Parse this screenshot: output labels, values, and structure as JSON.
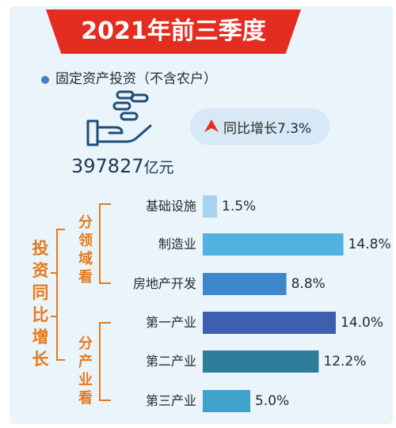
{
  "header": {
    "title": "2021年前三季度"
  },
  "summary": {
    "subtitle": "固定资产投资（不含农户）",
    "total_value": "397827",
    "total_unit": "亿元",
    "growth_text": "同比增长7.3%"
  },
  "side_label": "投资同比增长",
  "group_labels": {
    "by_sector": "分领域看",
    "by_industry": "分产业看"
  },
  "colors": {
    "banner": "#e52c20",
    "brace": "#e87a1c",
    "bar_light": "#a8d3ee",
    "bar_sky": "#51b1e0",
    "bar_mid": "#3f87cb",
    "bar_navy": "#3d5fae",
    "bar_teal": "#2e7d9b",
    "bar_cyan": "#3ea2cb"
  },
  "chart_data": {
    "type": "bar",
    "orientation": "horizontal",
    "categories": [
      "基础设施",
      "制造业",
      "房地产开发",
      "第一产业",
      "第二产业",
      "第三产业"
    ],
    "values": [
      1.5,
      14.8,
      8.8,
      14.0,
      12.2,
      5.0
    ],
    "value_labels": [
      "1.5%",
      "14.8%",
      "8.8%",
      "14.0%",
      "12.2%",
      "5.0%"
    ],
    "unit": "%",
    "bar_colors": [
      "#a8d3ee",
      "#51b1e0",
      "#3f87cb",
      "#3d5fae",
      "#2e7d9b",
      "#3ea2cb"
    ]
  }
}
